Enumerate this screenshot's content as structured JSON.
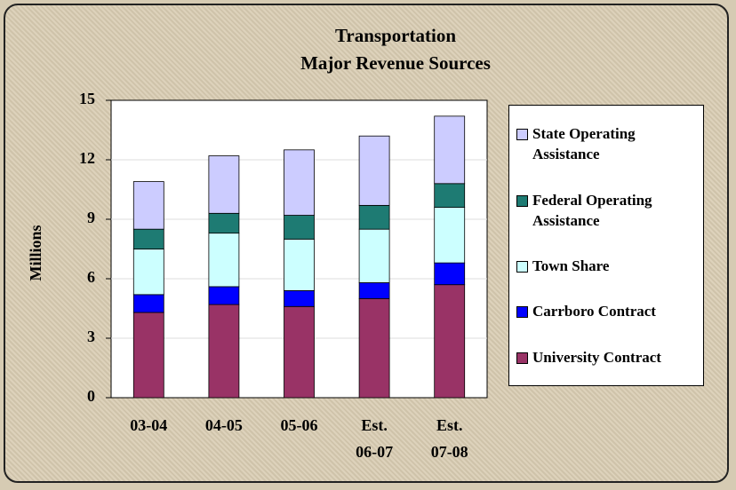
{
  "chart_data": {
    "type": "stacked-bar",
    "title": "Transportation",
    "subtitle": "Major Revenue Sources",
    "y_label": "Millions",
    "categories": [
      "03-04",
      "04-05",
      "05-06",
      "Est.\n06-07",
      "Est.\n07-08"
    ],
    "series": [
      {
        "name": "University Contract",
        "color": "#993366",
        "values": [
          4.3,
          4.7,
          4.6,
          5.0,
          5.7
        ]
      },
      {
        "name": "Carrboro Contract",
        "color": "#0000ff",
        "values": [
          0.9,
          0.9,
          0.8,
          0.8,
          1.1
        ]
      },
      {
        "name": "Town Share",
        "color": "#ccffff",
        "values": [
          2.3,
          2.7,
          2.6,
          2.7,
          2.8
        ]
      },
      {
        "name": "Federal Operating Assistance",
        "color": "#1e7b73",
        "values": [
          1.0,
          1.0,
          1.2,
          1.2,
          1.2
        ]
      },
      {
        "name": "State Operating Assistance",
        "color": "#ccccff",
        "values": [
          2.4,
          2.9,
          3.3,
          3.5,
          3.4
        ]
      }
    ],
    "ylim": [
      0,
      15
    ],
    "yticks": [
      0,
      3,
      6,
      9,
      12,
      15
    ],
    "grid": true,
    "legend": "right"
  }
}
